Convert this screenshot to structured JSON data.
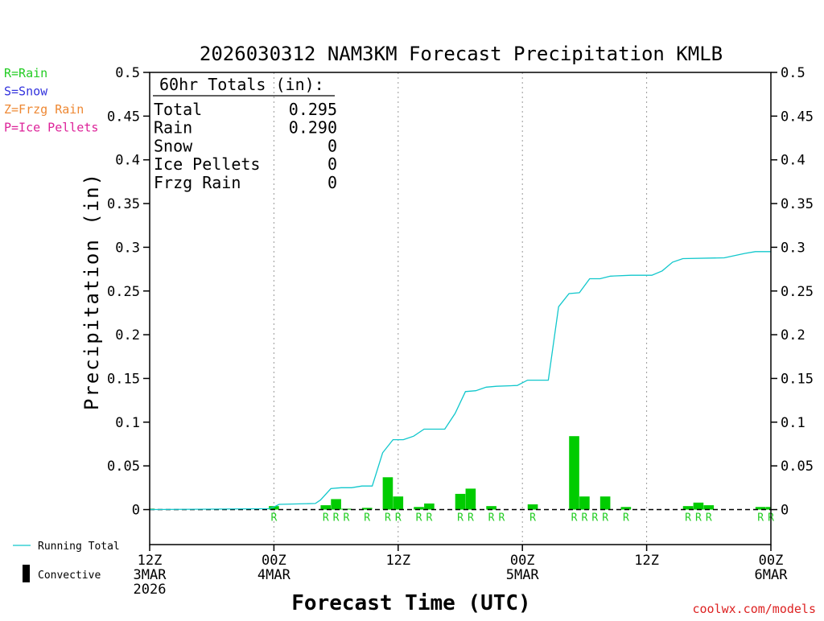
{
  "chart_data": {
    "type": "bar",
    "title": "2026030312 NAM3KM Forecast Precipitation KMLB",
    "xlabel": "Forecast Time (UTC)",
    "ylabel": "Precipitation (in)",
    "ylim": [
      -0.04,
      0.5
    ],
    "yticks": [
      0,
      0.05,
      0.1,
      0.15,
      0.2,
      0.25,
      0.3,
      0.35,
      0.4,
      0.45,
      0.5
    ],
    "ytick_labels": [
      "0",
      "0.05",
      "0.1",
      "0.15",
      "0.2",
      "0.25",
      "0.3",
      "0.35",
      "0.4",
      "0.45",
      "0.5"
    ],
    "xlim": [
      0,
      60
    ],
    "x_units": "forecast hour from 2026-03-03 12Z",
    "xticks": [
      {
        "hour": 0,
        "lines": [
          "12Z",
          "3MAR",
          "2026"
        ]
      },
      {
        "hour": 12,
        "lines": [
          "00Z",
          "4MAR"
        ]
      },
      {
        "hour": 24,
        "lines": [
          "12Z"
        ]
      },
      {
        "hour": 36,
        "lines": [
          "00Z",
          "5MAR"
        ]
      },
      {
        "hour": 48,
        "lines": [
          "12Z"
        ]
      },
      {
        "hour": 60,
        "lines": [
          "00Z",
          "6MAR"
        ]
      }
    ],
    "grid": "dotted vertical lines at 00Z and 12Z",
    "legend_left": [
      {
        "label": "R=Rain",
        "color": "#22cc22"
      },
      {
        "label": "S=Snow",
        "color": "#3333dd"
      },
      {
        "label": "Z=Frzg Rain",
        "color": "#ee8833"
      },
      {
        "label": "P=Ice Pellets",
        "color": "#dd2299"
      }
    ],
    "legend_bottom": [
      {
        "label": "Running Total",
        "color": "#11c7cc",
        "symbol": "line"
      },
      {
        "label": "Convective",
        "color": "#000000",
        "symbol": "bar"
      }
    ],
    "totals_box": {
      "header": "60hr Totals (in):",
      "rows": [
        {
          "label": "Total",
          "value": "0.295"
        },
        {
          "label": "Rain",
          "value": "0.290"
        },
        {
          "label": "Snow",
          "value": "0"
        },
        {
          "label": "Ice Pellets",
          "value": "0"
        },
        {
          "label": "Frzg Rain",
          "value": "0"
        }
      ]
    },
    "series": [
      {
        "name": "Rain",
        "kind": "bar",
        "color": "#00cc00",
        "points": [
          {
            "hour": 0,
            "value": 0.001
          },
          {
            "hour": 12,
            "value": 0.004
          },
          {
            "hour": 17,
            "value": 0.005
          },
          {
            "hour": 18,
            "value": 0.012
          },
          {
            "hour": 19,
            "value": 0.001
          },
          {
            "hour": 21,
            "value": 0.002
          },
          {
            "hour": 23,
            "value": 0.037
          },
          {
            "hour": 24,
            "value": 0.015
          },
          {
            "hour": 26,
            "value": 0.003
          },
          {
            "hour": 27,
            "value": 0.007
          },
          {
            "hour": 30,
            "value": 0.018
          },
          {
            "hour": 31,
            "value": 0.024
          },
          {
            "hour": 33,
            "value": 0.004
          },
          {
            "hour": 37,
            "value": 0.006
          },
          {
            "hour": 41,
            "value": 0.084
          },
          {
            "hour": 42,
            "value": 0.015
          },
          {
            "hour": 44,
            "value": 0.015
          },
          {
            "hour": 46,
            "value": 0.003
          },
          {
            "hour": 52,
            "value": 0.004
          },
          {
            "hour": 53,
            "value": 0.008
          },
          {
            "hour": 54,
            "value": 0.005
          },
          {
            "hour": 59,
            "value": 0.003
          },
          {
            "hour": 60,
            "value": 0.003
          }
        ]
      },
      {
        "name": "Running Total",
        "kind": "line",
        "color": "#11c7cc",
        "points": [
          {
            "hour": 0,
            "value": 0
          },
          {
            "hour": 11.5,
            "value": 0.001
          },
          {
            "hour": 12,
            "value": 0.003
          },
          {
            "hour": 12.5,
            "value": 0.006
          },
          {
            "hour": 16,
            "value": 0.007
          },
          {
            "hour": 16.5,
            "value": 0.011
          },
          {
            "hour": 17.5,
            "value": 0.024
          },
          {
            "hour": 18.5,
            "value": 0.025
          },
          {
            "hour": 19.5,
            "value": 0.025
          },
          {
            "hour": 20.5,
            "value": 0.027
          },
          {
            "hour": 21.5,
            "value": 0.027
          },
          {
            "hour": 22.5,
            "value": 0.065
          },
          {
            "hour": 23.5,
            "value": 0.08
          },
          {
            "hour": 24.5,
            "value": 0.08
          },
          {
            "hour": 25.5,
            "value": 0.084
          },
          {
            "hour": 26.5,
            "value": 0.092
          },
          {
            "hour": 28.5,
            "value": 0.092
          },
          {
            "hour": 29.5,
            "value": 0.11
          },
          {
            "hour": 30.5,
            "value": 0.135
          },
          {
            "hour": 31.5,
            "value": 0.136
          },
          {
            "hour": 32.5,
            "value": 0.14
          },
          {
            "hour": 33.5,
            "value": 0.141
          },
          {
            "hour": 35.5,
            "value": 0.142
          },
          {
            "hour": 36.5,
            "value": 0.148
          },
          {
            "hour": 38.5,
            "value": 0.148
          },
          {
            "hour": 39.5,
            "value": 0.232
          },
          {
            "hour": 40.5,
            "value": 0.247
          },
          {
            "hour": 41.5,
            "value": 0.248
          },
          {
            "hour": 42.5,
            "value": 0.264
          },
          {
            "hour": 43.5,
            "value": 0.264
          },
          {
            "hour": 44.5,
            "value": 0.267
          },
          {
            "hour": 46.5,
            "value": 0.268
          },
          {
            "hour": 48.5,
            "value": 0.268
          },
          {
            "hour": 49.5,
            "value": 0.273
          },
          {
            "hour": 50.5,
            "value": 0.283
          },
          {
            "hour": 51.5,
            "value": 0.287
          },
          {
            "hour": 55.5,
            "value": 0.288
          },
          {
            "hour": 57.5,
            "value": 0.293
          },
          {
            "hour": 58.5,
            "value": 0.295
          },
          {
            "hour": 60,
            "value": 0.295
          }
        ]
      }
    ],
    "ptype_markers": {
      "color": "#22cc22",
      "items": [
        {
          "hour": 12,
          "text": "R"
        },
        {
          "hour": 17,
          "text": "R"
        },
        {
          "hour": 18,
          "text": "R"
        },
        {
          "hour": 19,
          "text": "R"
        },
        {
          "hour": 21,
          "text": "R"
        },
        {
          "hour": 23,
          "text": "R"
        },
        {
          "hour": 24,
          "text": "R"
        },
        {
          "hour": 26,
          "text": "R"
        },
        {
          "hour": 27,
          "text": "R"
        },
        {
          "hour": 30,
          "text": "R"
        },
        {
          "hour": 31,
          "text": "R"
        },
        {
          "hour": 33,
          "text": "R"
        },
        {
          "hour": 34,
          "text": "R"
        },
        {
          "hour": 37,
          "text": "R"
        },
        {
          "hour": 41,
          "text": "R"
        },
        {
          "hour": 42,
          "text": "R"
        },
        {
          "hour": 43,
          "text": "R"
        },
        {
          "hour": 44,
          "text": "R"
        },
        {
          "hour": 46,
          "text": "R"
        },
        {
          "hour": 52,
          "text": "R"
        },
        {
          "hour": 53,
          "text": "R"
        },
        {
          "hour": 54,
          "text": "R"
        },
        {
          "hour": 59,
          "text": "R"
        },
        {
          "hour": 60,
          "text": "R"
        }
      ]
    }
  },
  "credit": "coolwx.com/models"
}
